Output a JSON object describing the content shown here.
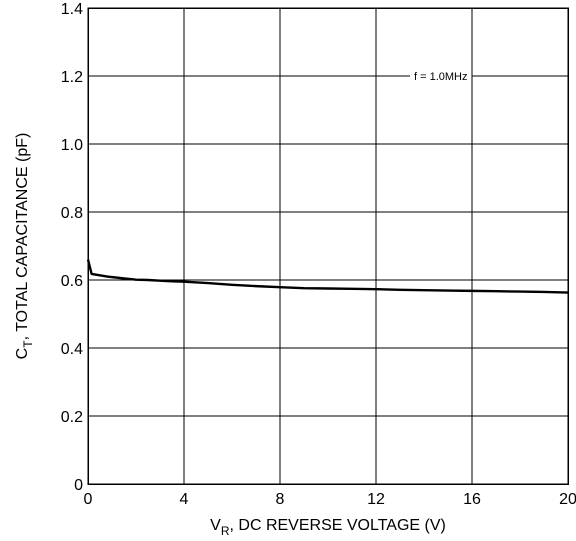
{
  "chart_data": {
    "type": "line",
    "xlabel_main": "V",
    "xlabel_sub": "R",
    "xlabel_rest": ", DC REVERSE VOLTAGE (V)",
    "ylabel_main": "C",
    "ylabel_sub": "T",
    "ylabel_rest": ", TOTAL CAPACITANCE (pF)",
    "annotation": "f = 1.0MHz",
    "xlim": [
      0,
      20
    ],
    "ylim": [
      0,
      1.4
    ],
    "x_ticks": [
      0,
      4,
      8,
      12,
      16,
      20
    ],
    "x_tick_labels": [
      "0",
      "4",
      "8",
      "12",
      "16",
      "20"
    ],
    "y_ticks": [
      0,
      0.2,
      0.4,
      0.6,
      0.8,
      1.0,
      1.2,
      1.4
    ],
    "y_tick_labels": [
      "0",
      "0.2",
      "0.4",
      "0.6",
      "0.8",
      "1.0",
      "1.2",
      "1.4"
    ],
    "grid": true,
    "series": [
      {
        "x": [
          0,
          0.15,
          0.4,
          0.8,
          1.2,
          1.6,
          2,
          2.5,
          3,
          3.5,
          4,
          5,
          6,
          7,
          8,
          9,
          10,
          11,
          12,
          13,
          14,
          15,
          16,
          17,
          18,
          19,
          20
        ],
        "y": [
          0.66,
          0.618,
          0.615,
          0.61,
          0.607,
          0.604,
          0.601,
          0.6,
          0.598,
          0.596,
          0.595,
          0.591,
          0.586,
          0.582,
          0.579,
          0.576,
          0.575,
          0.574,
          0.573,
          0.571,
          0.57,
          0.569,
          0.568,
          0.567,
          0.566,
          0.565,
          0.563
        ]
      }
    ]
  }
}
